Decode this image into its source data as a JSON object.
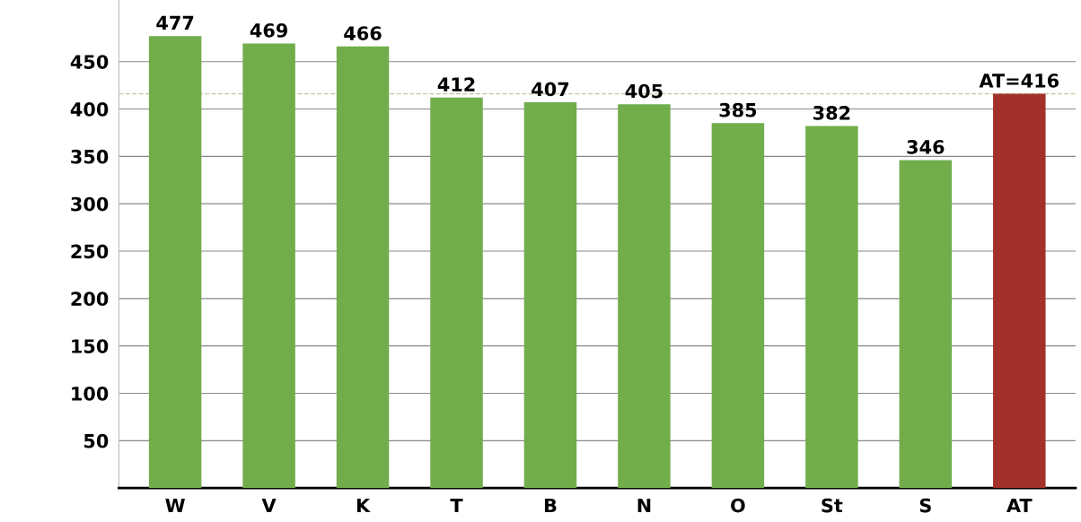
{
  "chart_data": {
    "type": "bar",
    "categories": [
      "W",
      "V",
      "K",
      "T",
      "B",
      "N",
      "O",
      "St",
      "S",
      "AT"
    ],
    "values": [
      477,
      469,
      466,
      412,
      407,
      405,
      385,
      382,
      346,
      416
    ],
    "value_labels": [
      "477",
      "469",
      "466",
      "412",
      "407",
      "405",
      "385",
      "382",
      "346",
      "AT=416"
    ],
    "colors": [
      "#72ad4c",
      "#72ad4c",
      "#72ad4c",
      "#72ad4c",
      "#72ad4c",
      "#72ad4c",
      "#72ad4c",
      "#72ad4c",
      "#72ad4c",
      "#a3312b"
    ],
    "ylim": [
      0,
      515
    ],
    "yticks": [
      50,
      100,
      150,
      200,
      250,
      300,
      350,
      400,
      450
    ],
    "grid": "y",
    "ref_lines": [
      {
        "axis": "y",
        "value": 416,
        "label": null,
        "color": "#c8c8a0",
        "line_style": "dashed"
      }
    ]
  }
}
